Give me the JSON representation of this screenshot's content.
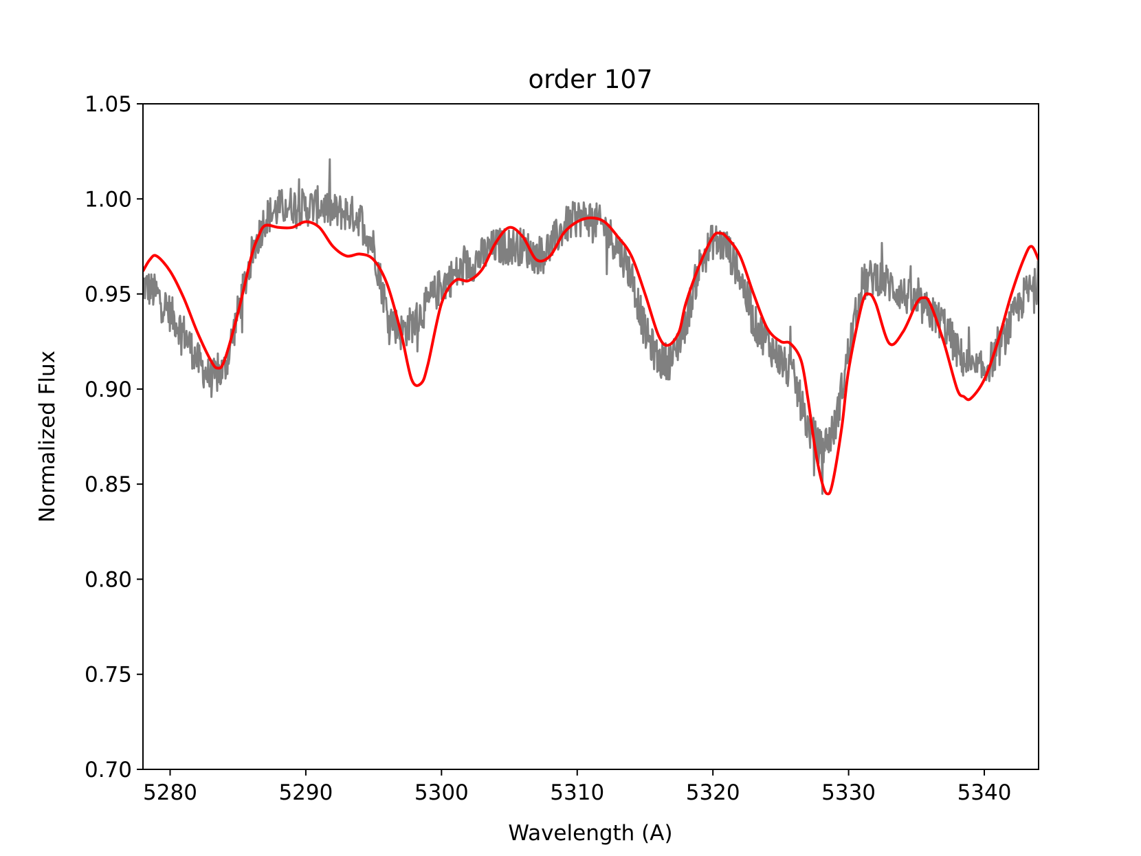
{
  "chart_data": {
    "type": "line",
    "title": "order 107",
    "xlabel": "Wavelength (A)",
    "ylabel": "Normalized Flux",
    "xlim": [
      5278,
      5344
    ],
    "ylim": [
      0.7,
      1.05
    ],
    "xticks": [
      5280,
      5290,
      5300,
      5310,
      5320,
      5330,
      5340
    ],
    "xtick_labels": [
      "5280",
      "5290",
      "5300",
      "5310",
      "5320",
      "5330",
      "5340"
    ],
    "yticks": [
      0.7,
      0.75,
      0.8,
      0.85,
      0.9,
      0.95,
      1.0,
      1.05
    ],
    "ytick_labels": [
      "0.70",
      "0.75",
      "0.80",
      "0.85",
      "0.90",
      "0.95",
      "1.00",
      "1.05"
    ],
    "grid": false,
    "series": [
      {
        "color": "#808080",
        "noise": 0.01,
        "x": [
          5278,
          5279,
          5280,
          5281,
          5282,
          5283,
          5284,
          5285,
          5286,
          5287,
          5288,
          5289,
          5290,
          5291,
          5292,
          5293,
          5294,
          5295,
          5296,
          5297,
          5298,
          5299,
          5300,
          5301,
          5302,
          5303,
          5304,
          5305,
          5306,
          5307,
          5308,
          5309,
          5310,
          5311,
          5312,
          5313,
          5314,
          5315,
          5316,
          5317,
          5318,
          5319,
          5320,
          5321,
          5322,
          5323,
          5324,
          5325,
          5326,
          5327,
          5328,
          5329,
          5330,
          5331,
          5332,
          5333,
          5334,
          5335,
          5336,
          5337,
          5338,
          5339,
          5340,
          5341,
          5342,
          5343,
          5344
        ],
        "y": [
          0.955,
          0.95,
          0.94,
          0.93,
          0.915,
          0.905,
          0.91,
          0.94,
          0.97,
          0.99,
          0.995,
          0.997,
          0.995,
          0.997,
          0.993,
          0.993,
          0.99,
          0.975,
          0.94,
          0.93,
          0.935,
          0.945,
          0.955,
          0.96,
          0.965,
          0.97,
          0.975,
          0.975,
          0.975,
          0.97,
          0.975,
          0.985,
          0.99,
          0.99,
          0.985,
          0.975,
          0.96,
          0.93,
          0.915,
          0.915,
          0.935,
          0.965,
          0.978,
          0.975,
          0.96,
          0.935,
          0.925,
          0.915,
          0.905,
          0.88,
          0.868,
          0.88,
          0.92,
          0.955,
          0.96,
          0.955,
          0.95,
          0.945,
          0.94,
          0.935,
          0.92,
          0.91,
          0.91,
          0.92,
          0.935,
          0.95,
          0.955
        ]
      },
      {
        "color": "#ff0000",
        "x": [
          5278,
          5278.5,
          5279,
          5280,
          5281,
          5282,
          5283,
          5283.5,
          5284,
          5285,
          5286,
          5286.5,
          5287,
          5288,
          5289,
          5290,
          5291,
          5292,
          5293,
          5294,
          5295,
          5296,
          5297,
          5297.8,
          5298.5,
          5299,
          5300,
          5301,
          5302,
          5303,
          5304,
          5305,
          5306,
          5307,
          5308,
          5309,
          5310,
          5311,
          5312,
          5313,
          5314,
          5315,
          5316,
          5316.7,
          5317.5,
          5318,
          5319,
          5320,
          5320.5,
          5321,
          5322,
          5323,
          5324,
          5325,
          5325.7,
          5326.5,
          5327,
          5327.5,
          5328,
          5328.4,
          5328.8,
          5329.5,
          5330,
          5331,
          5331.5,
          5332,
          5333,
          5334,
          5335,
          5335.5,
          5336,
          5337,
          5338,
          5338.5,
          5339,
          5340,
          5341,
          5342,
          5343,
          5343.5,
          5344
        ],
        "y": [
          0.962,
          0.968,
          0.97,
          0.962,
          0.948,
          0.93,
          0.915,
          0.911,
          0.915,
          0.94,
          0.97,
          0.98,
          0.986,
          0.985,
          0.985,
          0.988,
          0.985,
          0.975,
          0.97,
          0.971,
          0.968,
          0.955,
          0.93,
          0.905,
          0.903,
          0.913,
          0.945,
          0.957,
          0.957,
          0.963,
          0.977,
          0.985,
          0.98,
          0.968,
          0.97,
          0.982,
          0.988,
          0.99,
          0.988,
          0.98,
          0.97,
          0.95,
          0.928,
          0.923,
          0.93,
          0.945,
          0.965,
          0.98,
          0.982,
          0.98,
          0.97,
          0.95,
          0.932,
          0.925,
          0.924,
          0.915,
          0.895,
          0.87,
          0.852,
          0.845,
          0.85,
          0.88,
          0.91,
          0.945,
          0.95,
          0.945,
          0.924,
          0.93,
          0.945,
          0.948,
          0.945,
          0.925,
          0.9,
          0.896,
          0.895,
          0.905,
          0.925,
          0.95,
          0.97,
          0.975,
          0.968
        ]
      }
    ]
  }
}
